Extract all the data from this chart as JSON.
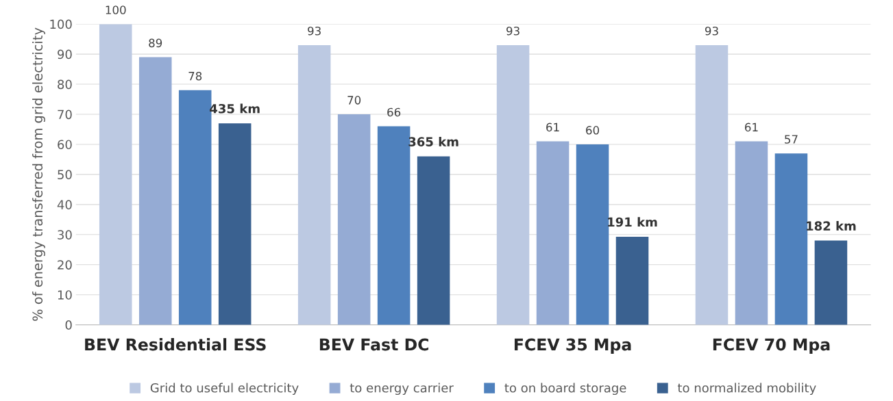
{
  "chart_data": {
    "type": "bar",
    "ylabel": "% of energy transferred from grid electricity",
    "categories": [
      "BEV Residential ESS",
      "BEV Fast DC",
      "FCEV 35 Mpa",
      "FCEV 70 Mpa"
    ],
    "series": [
      {
        "name": "Grid to useful electricity",
        "color": "#bcc9e2",
        "values": [
          100,
          93,
          93,
          93
        ],
        "value_labels": [
          "100",
          "93",
          "93",
          "93"
        ]
      },
      {
        "name": "to energy carrier",
        "color": "#95abd4",
        "values": [
          89,
          70,
          61,
          61
        ],
        "value_labels": [
          "89",
          "70",
          "61",
          "61"
        ]
      },
      {
        "name": "to on board storage",
        "color": "#4f81bd",
        "values": [
          78,
          66,
          60,
          57
        ],
        "value_labels": [
          "78",
          "66",
          "60",
          "57"
        ]
      },
      {
        "name": "to normalized mobility",
        "color": "#3a6190",
        "values": [
          67,
          56,
          29.3,
          28
        ]
      }
    ],
    "annotations": [
      "435 km",
      "365 km",
      "191 km",
      "182 km"
    ],
    "ylim": [
      0,
      100
    ],
    "yticks": [
      0,
      10,
      20,
      30,
      40,
      50,
      60,
      70,
      80,
      90,
      100
    ],
    "grid": "y",
    "legend": "bottom"
  }
}
